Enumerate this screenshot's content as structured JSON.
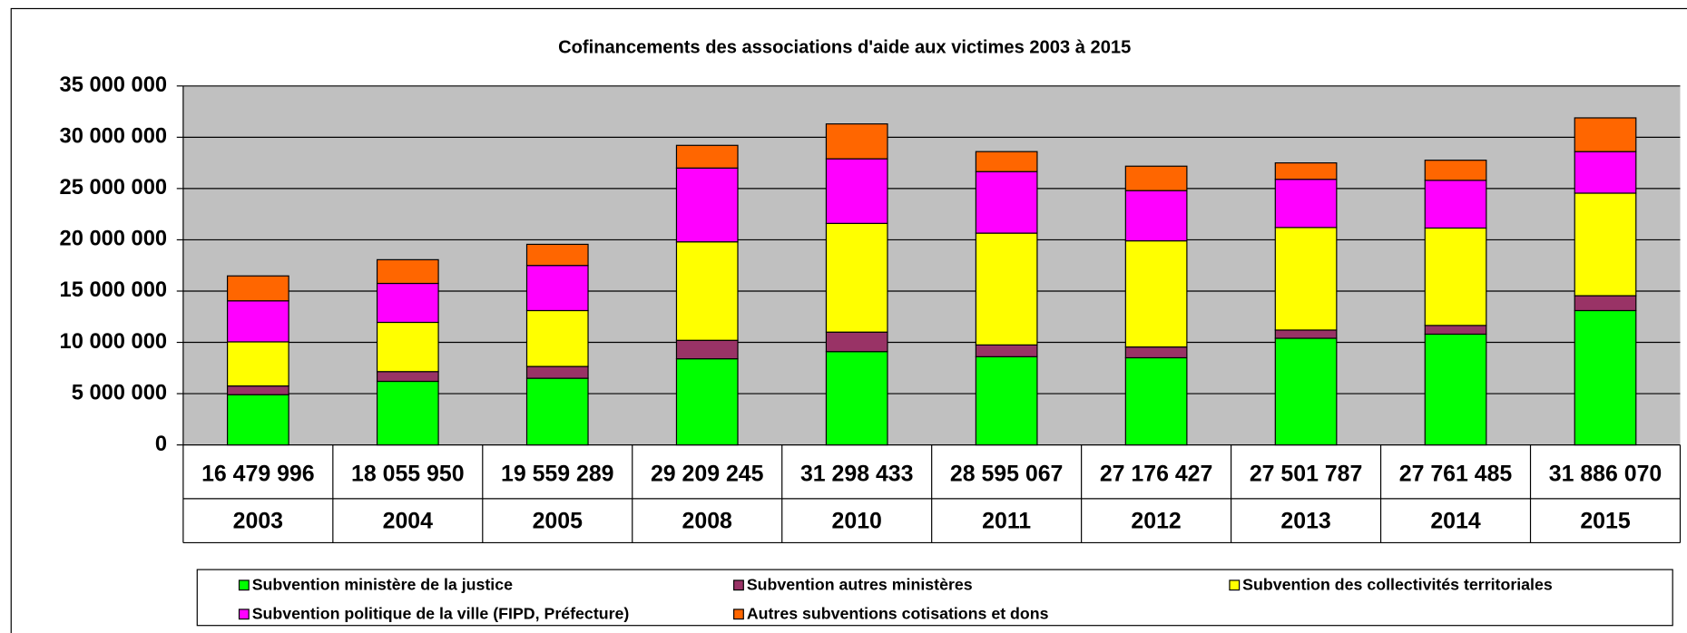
{
  "chart_data": {
    "type": "stacked_bar",
    "title": "Cofinancements des associations d'aide aux victimes 2003 à 2015",
    "categories": [
      "2003",
      "2004",
      "2005",
      "2008",
      "2010",
      "2011",
      "2012",
      "2013",
      "2014",
      "2015"
    ],
    "totals": [
      16479996,
      18055950,
      19559289,
      29209245,
      31298433,
      28595067,
      27176427,
      27501787,
      27761485,
      31886070
    ],
    "total_labels": [
      "16 479 996",
      "18 055 950",
      "19 559 289",
      "29 209 245",
      "31 298 433",
      "28 595 067",
      "27 176 427",
      "27 501 787",
      "27 761 485",
      "31 886 070"
    ],
    "series": [
      {
        "name": "Subvention ministère de la justice",
        "color": "#00ff00",
        "values": [
          4900000,
          6200000,
          6500000,
          8400000,
          9100000,
          8600000,
          8500000,
          10400000,
          10800000,
          13100000
        ]
      },
      {
        "name": "Subvention autres ministères",
        "color": "#993366",
        "values": [
          850000,
          950000,
          1150000,
          1800000,
          1900000,
          1150000,
          1050000,
          800000,
          850000,
          1450000
        ]
      },
      {
        "name": "Subvention des collectivités territoriales",
        "color": "#ffff00",
        "values": [
          4300000,
          4800000,
          5450000,
          9600000,
          10600000,
          10900000,
          10350000,
          10000000,
          9500000,
          10000000
        ]
      },
      {
        "name": "Subvention politique de la ville (FIPD, Préfecture)",
        "color": "#ff00ff",
        "values": [
          4000000,
          3800000,
          4400000,
          7200000,
          6300000,
          6000000,
          4900000,
          4700000,
          4650000,
          4050000
        ]
      },
      {
        "name": "Autres subventions cotisations et dons",
        "color": "#ff6600",
        "values": [
          2430000,
          2310000,
          2060000,
          2210000,
          3400000,
          1950000,
          2380000,
          1600000,
          1960000,
          3290000
        ]
      }
    ],
    "ylim": [
      0,
      35000000
    ],
    "yticks": [
      0,
      {
        "value": 5000000,
        "label": "5 000 000"
      },
      {
        "value": 10000000,
        "label": "10 000 000"
      },
      {
        "value": 15000000,
        "label": "15 000 000"
      },
      {
        "value": 20000000,
        "label": "20 000 000"
      },
      {
        "value": 25000000,
        "label": "25 000 000"
      },
      {
        "value": 30000000,
        "label": "30 000 000"
      },
      {
        "value": 35000000,
        "label": "35 000 000"
      }
    ],
    "grid": true
  }
}
